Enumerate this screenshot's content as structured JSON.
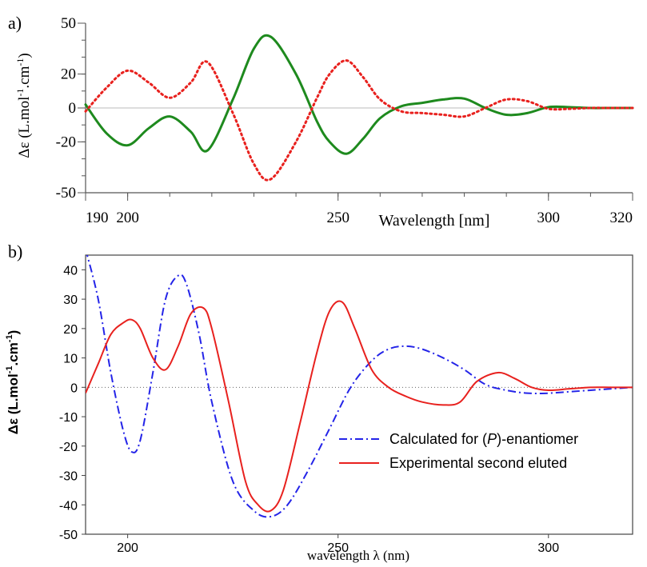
{
  "chart_data": [
    {
      "panel_label": "a)",
      "type": "line",
      "xlabel": "Wavelength [nm]",
      "ylabel": "Δε (L.mol-1.cm-1)",
      "ylabel_parts": {
        "pre": "Δε (L.mol",
        "sup1": "-1",
        "mid": ".cm",
        "sup2": "-1",
        "post": ")"
      },
      "xlim": [
        190,
        320
      ],
      "ylim": [
        -50,
        50
      ],
      "x_ticks": [
        190,
        200,
        250,
        300,
        320
      ],
      "y_ticks": [
        -50,
        -20,
        0,
        20,
        50
      ],
      "zero_line": true,
      "colors": {
        "green": "#1e8a1e",
        "red": "#e8211e"
      },
      "series": [
        {
          "style": "solid",
          "color": "#1e8a1e",
          "x": [
            190,
            195,
            200,
            205,
            210,
            215,
            219,
            225,
            230,
            234,
            240,
            245,
            248,
            252,
            256,
            260,
            265,
            270,
            275,
            280,
            285,
            290,
            295,
            300,
            305,
            310,
            315,
            320
          ],
          "y": [
            2,
            -15,
            -22,
            -12,
            -5,
            -14,
            -25,
            5,
            35,
            42,
            20,
            -8,
            -20,
            -27,
            -18,
            -6,
            1,
            3,
            5,
            5.5,
            0,
            -4,
            -3,
            0.5,
            0.5,
            0,
            0,
            0
          ]
        },
        {
          "style": "dotted",
          "color": "#e8211e",
          "x": [
            190,
            195,
            200,
            205,
            210,
            215,
            219,
            225,
            230,
            234,
            240,
            245,
            248,
            252,
            256,
            260,
            265,
            270,
            275,
            280,
            285,
            290,
            295,
            300,
            305,
            310,
            315,
            320
          ],
          "y": [
            -2,
            12,
            22,
            15,
            6,
            15,
            27,
            -3,
            -33,
            -42,
            -20,
            6,
            20,
            28,
            18,
            5,
            -2,
            -3,
            -4,
            -5,
            0,
            5,
            4,
            -0.5,
            -0.5,
            0,
            0,
            0
          ]
        }
      ]
    },
    {
      "panel_label": "b)",
      "type": "line",
      "xlabel": "wavelength λ (nm)",
      "ylabel": "Δε (L.mol-1.cm-1)",
      "ylabel_parts": {
        "pre": "Δε (L.mol",
        "sup1": "-1",
        "mid": ".cm",
        "sup2": "-1",
        "post": ")"
      },
      "xlim": [
        190,
        320
      ],
      "ylim": [
        -50,
        45
      ],
      "x_ticks": [
        200,
        250,
        300
      ],
      "y_ticks": [
        -50,
        -40,
        -30,
        -20,
        -10,
        0,
        10,
        20,
        30,
        40
      ],
      "zero_line": true,
      "legend": {
        "position": "bottom-right"
      },
      "colors": {
        "blue": "#2424e8",
        "red": "#e8211e"
      },
      "series": [
        {
          "name": "Calculated for (P)-enantiomer",
          "name_parts": {
            "pre": "Calculated for (",
            "italic": "P",
            "post": ")-enantiomer"
          },
          "style": "dashdot",
          "color": "#2424e8",
          "x": [
            190,
            193,
            196,
            199,
            201,
            203,
            206,
            209,
            212,
            214,
            217,
            220,
            225,
            230,
            234,
            238,
            243,
            248,
            253,
            258,
            262,
            266,
            270,
            275,
            280,
            285,
            290,
            295,
            300,
            305,
            310,
            315,
            320
          ],
          "y": [
            47,
            30,
            5,
            -15,
            -22,
            -18,
            5,
            30,
            38,
            35,
            18,
            -5,
            -32,
            -42,
            -44,
            -40,
            -28,
            -14,
            0,
            9,
            13,
            14,
            13,
            10,
            6,
            1,
            -1,
            -2,
            -2,
            -1.5,
            -1,
            -0.5,
            0
          ]
        },
        {
          "name": "Experimental second eluted",
          "style": "solid",
          "color": "#e8211e",
          "x": [
            190,
            193,
            196,
            199,
            201,
            203,
            206,
            209,
            212,
            215,
            218,
            220,
            224,
            228,
            231,
            234,
            237,
            241,
            245,
            248,
            251,
            254,
            258,
            262,
            266,
            270,
            275,
            279,
            283,
            288,
            292,
            296,
            300,
            305,
            310,
            315,
            320
          ],
          "y": [
            -2,
            8,
            18,
            22,
            23,
            20,
            10,
            6,
            14,
            25,
            27,
            20,
            -5,
            -32,
            -40,
            -42,
            -35,
            -12,
            12,
            26,
            29,
            20,
            6,
            0,
            -3,
            -5,
            -6,
            -5,
            2,
            5,
            3,
            0,
            -1,
            -0.5,
            0,
            0,
            0
          ]
        }
      ]
    }
  ]
}
